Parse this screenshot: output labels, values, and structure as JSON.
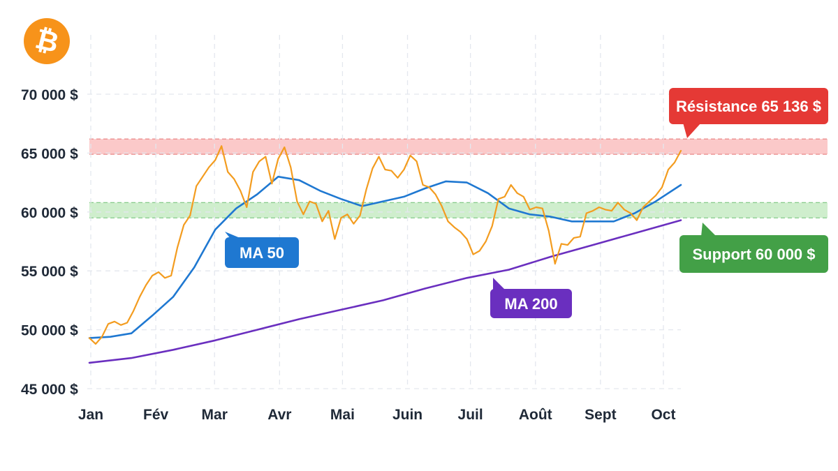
{
  "logo": {
    "icon": "bitcoin-icon",
    "glyph": "₿",
    "color": "#f7931a"
  },
  "chart_data": {
    "type": "line",
    "title": "",
    "xlabel": "",
    "ylabel": "",
    "ylim": [
      45000,
      70000
    ],
    "y_ticks": [
      45000,
      50000,
      55000,
      60000,
      65000,
      70000
    ],
    "y_tick_labels": [
      "45 000 $",
      "50 000 $",
      "55 000 $",
      "60 000 $",
      "65 000 $",
      "70 000 $"
    ],
    "x_month_labels": [
      "Jan",
      "Fév",
      "Mar",
      "Avr",
      "Mai",
      "Juin",
      "Juil",
      "Août",
      "Sept",
      "Oct"
    ],
    "xlim_days": [
      0,
      282
    ],
    "grid": {
      "vertical": true,
      "horizontal": true,
      "style": "dashed"
    },
    "series": [
      {
        "key": "price",
        "color": "#f39c1f",
        "x": [
          0,
          3,
          6,
          9,
          12,
          15,
          18,
          21,
          24,
          27,
          30,
          33,
          36,
          39,
          42,
          45,
          48,
          51,
          54,
          57,
          60,
          63,
          66,
          69,
          72,
          75,
          78,
          81,
          84,
          87,
          90,
          93,
          96,
          99,
          102,
          105,
          108,
          111,
          114,
          117,
          120,
          123,
          126,
          129,
          132,
          135,
          138,
          141,
          144,
          147,
          150,
          153,
          156,
          159,
          162,
          165,
          168,
          171,
          174,
          177,
          180,
          183,
          186,
          189,
          192,
          195,
          198,
          201,
          204,
          207,
          210,
          213,
          216,
          219,
          222,
          225,
          228,
          231,
          234,
          237,
          240,
          243,
          246,
          249,
          252,
          255,
          258,
          261,
          264,
          267,
          270,
          273,
          276,
          279,
          282
        ],
        "values": [
          49300,
          48800,
          49400,
          50500,
          50700,
          50400,
          50600,
          51600,
          52800,
          53800,
          54600,
          54900,
          54400,
          54600,
          57000,
          58900,
          59700,
          62200,
          63000,
          63800,
          64400,
          65600,
          63400,
          62800,
          61800,
          60400,
          63400,
          64300,
          64700,
          62400,
          64500,
          65500,
          63800,
          60900,
          59800,
          60900,
          60700,
          59200,
          60100,
          57700,
          59500,
          59800,
          59000,
          59700,
          61900,
          63700,
          64700,
          63600,
          63500,
          62900,
          63600,
          64800,
          64300,
          62300,
          62100,
          61500,
          60500,
          59200,
          58700,
          58300,
          57700,
          56400,
          56700,
          57500,
          58800,
          61100,
          61300,
          62300,
          61600,
          61300,
          60200,
          60400,
          60300,
          58400,
          55600,
          57300,
          57200,
          57800,
          57900,
          59900,
          60100,
          60400,
          60200,
          60100,
          60800,
          60200,
          59900,
          59300,
          60400,
          60900,
          61400,
          62100,
          63600,
          64200,
          65200
        ]
      },
      {
        "key": "ma50",
        "color": "#1f78d1",
        "x": [
          0,
          10,
          20,
          30,
          40,
          50,
          60,
          70,
          80,
          90,
          100,
          110,
          120,
          130,
          140,
          150,
          160,
          170,
          180,
          190,
          200,
          210,
          220,
          230,
          240,
          250,
          260,
          270,
          282
        ],
        "values": [
          49300,
          49400,
          49700,
          51200,
          52800,
          55300,
          58500,
          60300,
          61500,
          63000,
          62700,
          61800,
          61100,
          60500,
          60900,
          61300,
          62000,
          62600,
          62500,
          61600,
          60300,
          59800,
          59600,
          59200,
          59200,
          59200,
          59900,
          60900,
          62300
        ]
      },
      {
        "key": "ma200",
        "color": "#6a2fbf",
        "x": [
          0,
          20,
          40,
          60,
          80,
          100,
          120,
          140,
          160,
          180,
          200,
          220,
          240,
          260,
          282
        ],
        "values": [
          47200,
          47600,
          48300,
          49100,
          50000,
          50900,
          51700,
          52500,
          53500,
          54400,
          55100,
          56200,
          57200,
          58200,
          59300
        ]
      }
    ],
    "zones": [
      {
        "key": "resistance",
        "from": 64900,
        "to": 66200,
        "fill": "#fbc9c9",
        "line": "#e57373"
      },
      {
        "key": "support",
        "from": 59500,
        "to": 60800,
        "fill": "#cfeecd",
        "line": "#6fbf73"
      }
    ],
    "annotations": [
      {
        "key": "resistance",
        "text": "Résistance 65 136 $",
        "color": "#e53935"
      },
      {
        "key": "support",
        "text": "Support 60 000 $",
        "color": "#43a047"
      },
      {
        "key": "ma50",
        "text": "MA 50",
        "color": "#1f78d1"
      },
      {
        "key": "ma200",
        "text": "MA 200",
        "color": "#6a2fbf"
      }
    ]
  }
}
